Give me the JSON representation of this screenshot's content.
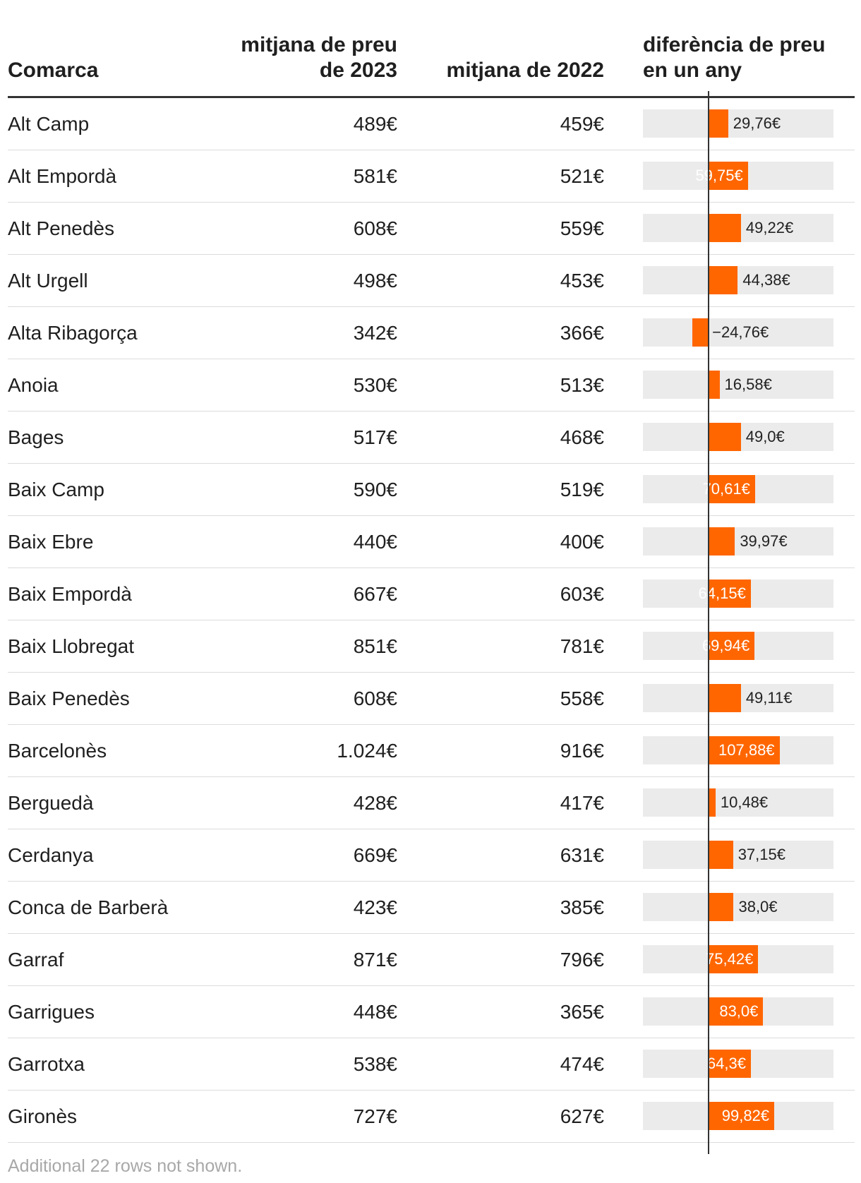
{
  "chart_data": {
    "type": "table",
    "columns": [
      "Comarca",
      "mitjana de preu de 2023",
      "mitjana de 2022",
      "diferència de preu en un any"
    ],
    "header": {
      "name": "Comarca",
      "p2023": "mitjana de preu de 2023",
      "p2022": "mitjana de 2022",
      "diff": "diferència de preu en un any"
    },
    "diff_axis": {
      "min": -100,
      "max": 190
    },
    "colors": {
      "bar": "#ff6600",
      "track": "#ebebeb",
      "zero_line": "#333333"
    },
    "rows": [
      {
        "name": "Alt Camp",
        "p2023": "489€",
        "p2022": "459€",
        "diff": 29.76,
        "diff_label": "29,76€"
      },
      {
        "name": "Alt Empordà",
        "p2023": "581€",
        "p2022": "521€",
        "diff": 59.75,
        "diff_label": "59,75€"
      },
      {
        "name": "Alt Penedès",
        "p2023": "608€",
        "p2022": "559€",
        "diff": 49.22,
        "diff_label": "49,22€"
      },
      {
        "name": "Alt Urgell",
        "p2023": "498€",
        "p2022": "453€",
        "diff": 44.38,
        "diff_label": "44,38€"
      },
      {
        "name": "Alta Ribagorça",
        "p2023": "342€",
        "p2022": "366€",
        "diff": -24.76,
        "diff_label": "−24,76€"
      },
      {
        "name": "Anoia",
        "p2023": "530€",
        "p2022": "513€",
        "diff": 16.58,
        "diff_label": "16,58€"
      },
      {
        "name": "Bages",
        "p2023": "517€",
        "p2022": "468€",
        "diff": 49.0,
        "diff_label": "49,0€"
      },
      {
        "name": "Baix Camp",
        "p2023": "590€",
        "p2022": "519€",
        "diff": 70.61,
        "diff_label": "70,61€"
      },
      {
        "name": "Baix Ebre",
        "p2023": "440€",
        "p2022": "400€",
        "diff": 39.97,
        "diff_label": "39,97€"
      },
      {
        "name": "Baix Empordà",
        "p2023": "667€",
        "p2022": "603€",
        "diff": 64.15,
        "diff_label": "64,15€"
      },
      {
        "name": "Baix Llobregat",
        "p2023": "851€",
        "p2022": "781€",
        "diff": 69.94,
        "diff_label": "69,94€"
      },
      {
        "name": "Baix Penedès",
        "p2023": "608€",
        "p2022": "558€",
        "diff": 49.11,
        "diff_label": "49,11€"
      },
      {
        "name": "Barcelonès",
        "p2023": "1.024€",
        "p2022": "916€",
        "diff": 107.88,
        "diff_label": "107,88€"
      },
      {
        "name": "Berguedà",
        "p2023": "428€",
        "p2022": "417€",
        "diff": 10.48,
        "diff_label": "10,48€"
      },
      {
        "name": "Cerdanya",
        "p2023": "669€",
        "p2022": "631€",
        "diff": 37.15,
        "diff_label": "37,15€"
      },
      {
        "name": "Conca de Barberà",
        "p2023": "423€",
        "p2022": "385€",
        "diff": 38.0,
        "diff_label": "38,0€"
      },
      {
        "name": "Garraf",
        "p2023": "871€",
        "p2022": "796€",
        "diff": 75.42,
        "diff_label": "75,42€"
      },
      {
        "name": "Garrigues",
        "p2023": "448€",
        "p2022": "365€",
        "diff": 83.0,
        "diff_label": "83,0€"
      },
      {
        "name": "Garrotxa",
        "p2023": "538€",
        "p2022": "474€",
        "diff": 64.3,
        "diff_label": "64,3€"
      },
      {
        "name": "Gironès",
        "p2023": "727€",
        "p2022": "627€",
        "diff": 99.82,
        "diff_label": "99,82€"
      }
    ],
    "footer": "Additional 22 rows not shown."
  }
}
